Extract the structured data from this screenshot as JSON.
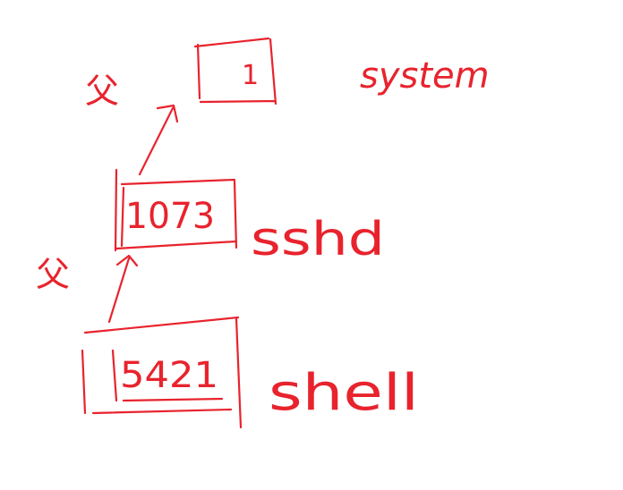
{
  "diagram": {
    "ink_color": "#e8232d",
    "nodes": [
      {
        "id": "system",
        "pid": "1",
        "name": "system"
      },
      {
        "id": "sshd",
        "pid": "1073",
        "name": "sshd"
      },
      {
        "id": "shell",
        "pid": "5421",
        "name": "shell"
      }
    ],
    "edges": [
      {
        "from": "shell",
        "to": "sshd",
        "label": "父"
      },
      {
        "from": "sshd",
        "to": "system",
        "label": "父"
      }
    ]
  }
}
